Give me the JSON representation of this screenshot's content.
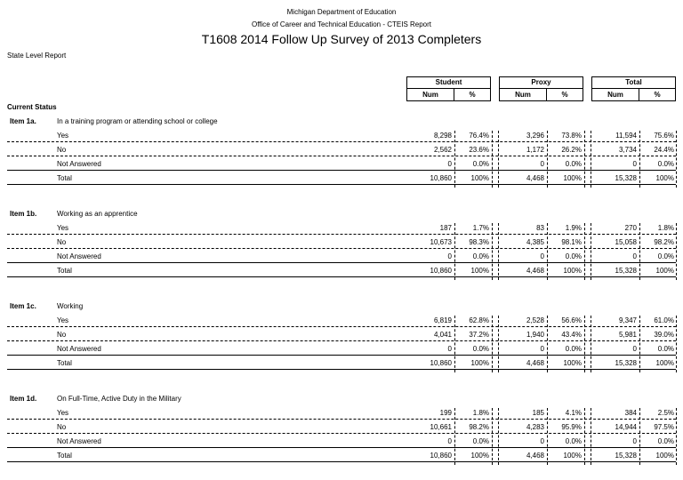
{
  "header": {
    "line1": "Michigan Department of Education",
    "line2": "Office of Career and Technical Education - CTEIS Report",
    "title": "T1608 2014 Follow Up Survey of 2013 Completers",
    "state_report": "State Level Report"
  },
  "groups": [
    {
      "name": "Student",
      "num": "Num",
      "pct": "%"
    },
    {
      "name": "Proxy",
      "num": "Num",
      "pct": "%"
    },
    {
      "name": "Total",
      "num": "Num",
      "pct": "%"
    }
  ],
  "current_status": "Current Status",
  "items": [
    {
      "label": "Item 1a.",
      "desc": "In a training program or attending school or college",
      "rows": [
        {
          "label": "Yes",
          "vals": [
            "8,298",
            "76.4%",
            "3,296",
            "73.8%",
            "11,594",
            "75.6%"
          ]
        },
        {
          "label": "No",
          "vals": [
            "2,562",
            "23.6%",
            "1,172",
            "26.2%",
            "3,734",
            "24.4%"
          ]
        },
        {
          "label": "Not Answered",
          "vals": [
            "0",
            "0.0%",
            "0",
            "0.0%",
            "0",
            "0.0%"
          ]
        },
        {
          "label": "Total",
          "vals": [
            "10,860",
            "100%",
            "4,468",
            "100%",
            "15,328",
            "100%"
          ]
        }
      ]
    },
    {
      "label": "Item 1b.",
      "desc": "Working as an apprentice",
      "rows": [
        {
          "label": "Yes",
          "vals": [
            "187",
            "1.7%",
            "83",
            "1.9%",
            "270",
            "1.8%"
          ]
        },
        {
          "label": "No",
          "vals": [
            "10,673",
            "98.3%",
            "4,385",
            "98.1%",
            "15,058",
            "98.2%"
          ]
        },
        {
          "label": "Not Answered",
          "vals": [
            "0",
            "0.0%",
            "0",
            "0.0%",
            "0",
            "0.0%"
          ]
        },
        {
          "label": "Total",
          "vals": [
            "10,860",
            "100%",
            "4,468",
            "100%",
            "15,328",
            "100%"
          ]
        }
      ]
    },
    {
      "label": "Item 1c.",
      "desc": "Working",
      "rows": [
        {
          "label": "Yes",
          "vals": [
            "6,819",
            "62.8%",
            "2,528",
            "56.6%",
            "9,347",
            "61.0%"
          ]
        },
        {
          "label": "No",
          "vals": [
            "4,041",
            "37.2%",
            "1,940",
            "43.4%",
            "5,981",
            "39.0%"
          ]
        },
        {
          "label": "Not Answered",
          "vals": [
            "0",
            "0.0%",
            "0",
            "0.0%",
            "0",
            "0.0%"
          ]
        },
        {
          "label": "Total",
          "vals": [
            "10,860",
            "100%",
            "4,468",
            "100%",
            "15,328",
            "100%"
          ]
        }
      ]
    },
    {
      "label": "Item 1d.",
      "desc": "On Full-Time, Active Duty in the Military",
      "rows": [
        {
          "label": "Yes",
          "vals": [
            "199",
            "1.8%",
            "185",
            "4.1%",
            "384",
            "2.5%"
          ]
        },
        {
          "label": "No",
          "vals": [
            "10,661",
            "98.2%",
            "4,283",
            "95.9%",
            "14,944",
            "97.5%"
          ]
        },
        {
          "label": "Not Answered",
          "vals": [
            "0",
            "0.0%",
            "0",
            "0.0%",
            "0",
            "0.0%"
          ]
        },
        {
          "label": "Total",
          "vals": [
            "10,860",
            "100%",
            "4,468",
            "100%",
            "15,328",
            "100%"
          ]
        }
      ]
    }
  ]
}
